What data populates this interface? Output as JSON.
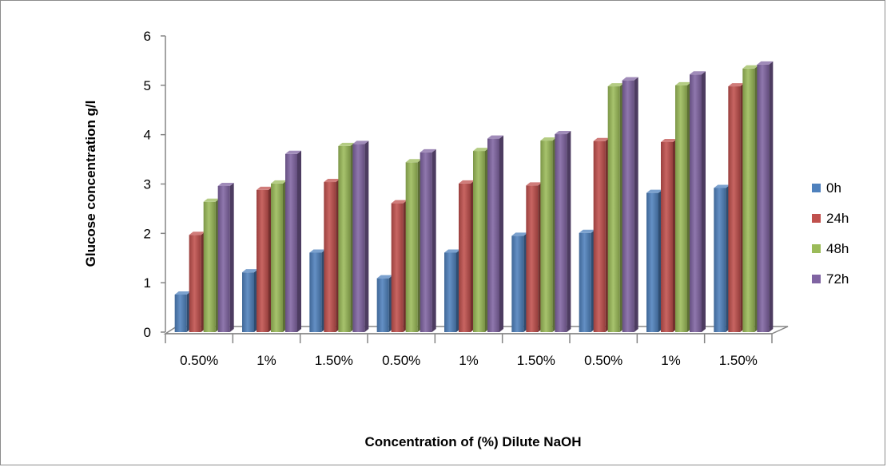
{
  "chart_data": {
    "type": "bar",
    "title": "",
    "xlabel": "Concentration of (%) Dilute NaOH",
    "ylabel": "Glucose concentration g/l",
    "ylim": [
      0,
      6
    ],
    "yticks": [
      0,
      1,
      2,
      3,
      4,
      5,
      6
    ],
    "grid": false,
    "legend_position": "right",
    "categories": [
      "0.50%",
      "1%",
      "1.50%",
      "0.50%",
      "1%",
      "1.50%",
      "0.50%",
      "1%",
      "1.50%"
    ],
    "series": [
      {
        "name": "0h",
        "color": "#4F81BD",
        "values": [
          0.76,
          1.21,
          1.61,
          1.09,
          1.61,
          1.95,
          2.01,
          2.82,
          2.92
        ]
      },
      {
        "name": "24h",
        "color": "#C0504D",
        "values": [
          1.97,
          2.88,
          3.04,
          2.61,
          3.01,
          2.97,
          3.87,
          3.85,
          4.98
        ]
      },
      {
        "name": "48h",
        "color": "#9BBB59",
        "values": [
          2.64,
          3.01,
          3.77,
          3.44,
          3.67,
          3.88,
          4.98,
          5.0,
          5.34
        ]
      },
      {
        "name": "72h",
        "color": "#8064A2",
        "values": [
          2.96,
          3.61,
          3.81,
          3.64,
          3.92,
          4.01,
          5.1,
          5.22,
          5.42
        ]
      }
    ]
  }
}
